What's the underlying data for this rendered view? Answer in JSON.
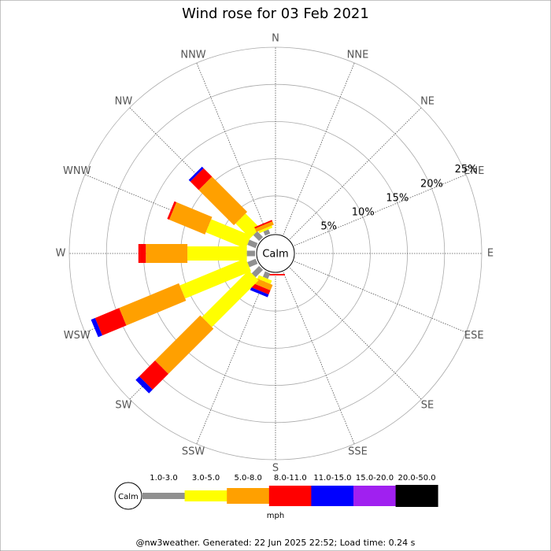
{
  "chart_data": {
    "type": "windrose",
    "title": "Wind rose for 03 Feb 2021",
    "directions": [
      "N",
      "NNE",
      "NE",
      "ENE",
      "E",
      "ESE",
      "SE",
      "SSE",
      "S",
      "SSW",
      "SW",
      "WSW",
      "W",
      "WNW",
      "NW",
      "NNW"
    ],
    "series": [
      {
        "name": "1.0-3.0",
        "color": "#909090",
        "values": [
          0,
          0,
          0,
          0,
          0,
          0,
          0,
          0,
          0,
          0.8,
          1.4,
          1.2,
          1.1,
          1.2,
          1.1,
          0.6
        ]
      },
      {
        "name": "3.0-5.0",
        "color": "#ffff00",
        "values": [
          0,
          0,
          0,
          0,
          0,
          0,
          0,
          0,
          0,
          0.5,
          8.9,
          9.6,
          8.0,
          5.8,
          2.8,
          0.3
        ]
      },
      {
        "name": "5.0-8.0",
        "color": "#ffa000",
        "values": [
          0,
          0,
          0,
          0,
          0,
          0,
          0,
          0,
          0,
          0.8,
          8.6,
          8.7,
          5.6,
          5.2,
          6.7,
          0.5
        ]
      },
      {
        "name": "8.0-11.0",
        "color": "#ff0000",
        "values": [
          0,
          0,
          0,
          0,
          0,
          0,
          0,
          0,
          0.2,
          0.6,
          3.0,
          3.5,
          1.0,
          0.3,
          1.6,
          0.2
        ]
      },
      {
        "name": "11.0-15.0",
        "color": "#0000ff",
        "values": [
          0,
          0,
          0,
          0,
          0,
          0,
          0,
          0,
          0,
          0.4,
          0.7,
          0.6,
          0,
          0,
          0.3,
          0
        ]
      },
      {
        "name": "15.0-20.0",
        "color": "#a020f0",
        "values": [
          0,
          0,
          0,
          0,
          0,
          0,
          0,
          0,
          0,
          0,
          0,
          0,
          0,
          0,
          0,
          0
        ]
      },
      {
        "name": "20.0-50.0",
        "color": "#000000",
        "values": [
          0,
          0,
          0,
          0,
          0,
          0,
          0,
          0,
          0,
          0,
          0,
          0,
          0,
          0,
          0,
          0
        ]
      }
    ],
    "rlim": [
      0,
      25
    ],
    "rticks": [
      {
        "value": 5,
        "label": "5%"
      },
      {
        "value": 10,
        "label": "10%"
      },
      {
        "value": 15,
        "label": "15%"
      },
      {
        "value": 20,
        "label": "20%"
      },
      {
        "value": 25,
        "label": "25%"
      }
    ],
    "center_label": "Calm",
    "unit_label": "mph"
  },
  "footer": "@nw3weather. Generated: 22 Jun 2025 22:52; Load time: 0.24 s"
}
